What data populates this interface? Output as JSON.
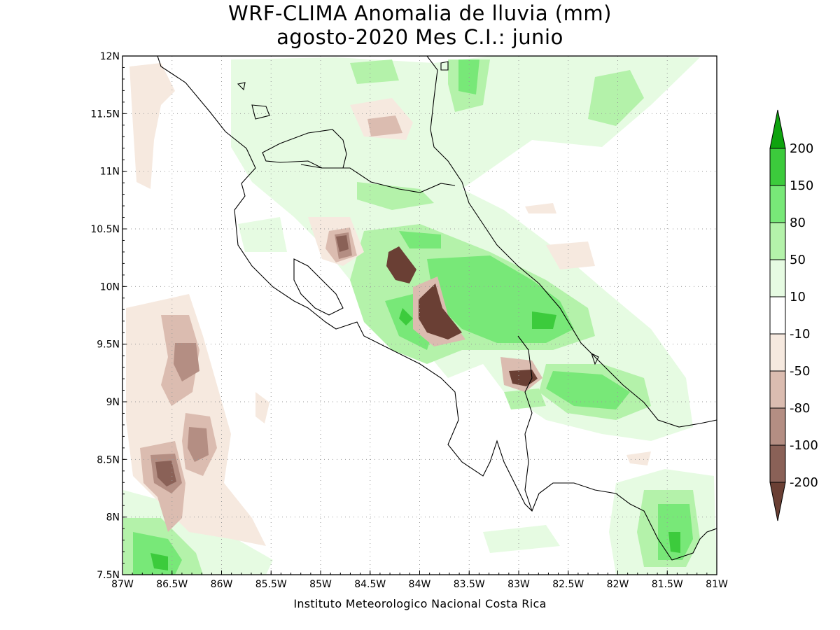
{
  "title_line1": "WRF-CLIMA Anomalia de lluvia (mm)",
  "title_line2": "agosto-2020 Mes C.I.: junio",
  "footer": "Instituto Meteorologico Nacional Costa Rica",
  "map": {
    "lon_range": [
      -87,
      -81
    ],
    "lat_range": [
      7.5,
      12
    ],
    "x_ticks": [
      "87W",
      "86.5W",
      "86W",
      "85.5W",
      "85W",
      "84.5W",
      "84W",
      "83.5W",
      "83W",
      "82.5W",
      "82W",
      "81.5W",
      "81W"
    ],
    "y_ticks": [
      "12N",
      "11.5N",
      "11N",
      "10.5N",
      "10N",
      "9.5N",
      "9N",
      "8.5N",
      "8N",
      "7.5N"
    ],
    "grid": "dotted"
  },
  "legend": {
    "labels": [
      "200",
      "150",
      "80",
      "50",
      "10",
      "-10",
      "-50",
      "-80",
      "-100",
      "-200"
    ],
    "colors": [
      "#0ea30e",
      "#3ccb3c",
      "#78e878",
      "#b4f2aa",
      "#e6fbe2",
      "#ffffff",
      "#f6e9df",
      "#dbbcb0",
      "#b48e83",
      "#8a6157",
      "#6a3f34"
    ]
  }
}
